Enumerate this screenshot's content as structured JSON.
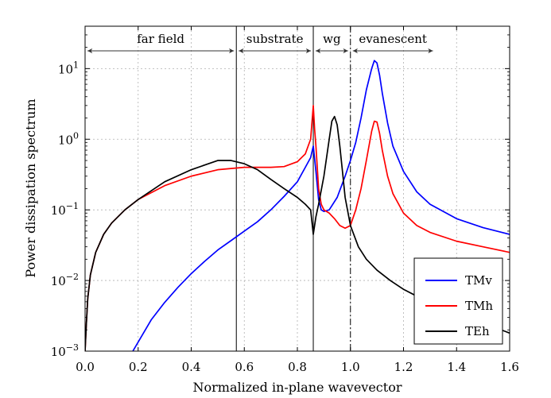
{
  "chart_data": {
    "type": "line",
    "title": "",
    "xlabel": "Normalized in-plane wavevector",
    "ylabel": "Power dissipation spectrum",
    "xlim": [
      0.0,
      1.6
    ],
    "ylim_log10": [
      -3,
      1.6
    ],
    "y_scale": "log",
    "grid": true,
    "legend_position": "bottom-right",
    "x_ticks": [
      0.0,
      0.2,
      0.4,
      0.6,
      0.8,
      1.0,
      1.2,
      1.4,
      1.6
    ],
    "x_tick_labels": [
      "0.0",
      "0.2",
      "0.4",
      "0.6",
      "0.8",
      "1.0",
      "1.2",
      "1.4",
      "1.6"
    ],
    "y_ticks_exp": [
      -3,
      -2,
      -1,
      0,
      1
    ],
    "y_tick_labels": [
      {
        "base": "10",
        "exp": "−3"
      },
      {
        "base": "10",
        "exp": "−2"
      },
      {
        "base": "10",
        "exp": "−1"
      },
      {
        "base": "10",
        "exp": "0"
      },
      {
        "base": "10",
        "exp": "1"
      }
    ],
    "regions": [
      {
        "label": "far field",
        "x_start": 0.0,
        "x_end": 0.57
      },
      {
        "label": "substrate",
        "x_start": 0.57,
        "x_end": 0.86
      },
      {
        "label": "wg",
        "x_start": 0.86,
        "x_end": 1.0
      },
      {
        "label": "evanescent",
        "x_start": 1.0,
        "x_end": 1.32
      }
    ],
    "boundaries": [
      {
        "x": 0.57,
        "style": "solid"
      },
      {
        "x": 0.86,
        "style": "solid"
      },
      {
        "x": 1.0,
        "style": "dashdot"
      }
    ],
    "series": [
      {
        "name": "TMv",
        "color": "#0000ff",
        "x": [
          0.18,
          0.25,
          0.3,
          0.35,
          0.4,
          0.45,
          0.5,
          0.55,
          0.6,
          0.65,
          0.7,
          0.75,
          0.8,
          0.83,
          0.85,
          0.86,
          0.87,
          0.88,
          0.89,
          0.9,
          0.92,
          0.95,
          0.98,
          1.0,
          1.02,
          1.04,
          1.06,
          1.08,
          1.09,
          1.1,
          1.11,
          1.12,
          1.14,
          1.16,
          1.2,
          1.25,
          1.3,
          1.4,
          1.5,
          1.6
        ],
        "y": [
          0.001,
          0.0028,
          0.0049,
          0.008,
          0.0125,
          0.0186,
          0.027,
          0.0367,
          0.05,
          0.068,
          0.1,
          0.155,
          0.25,
          0.4,
          0.55,
          0.8,
          0.35,
          0.14,
          0.1,
          0.095,
          0.1,
          0.15,
          0.3,
          0.5,
          0.9,
          2.0,
          5.0,
          10.0,
          13.0,
          12.0,
          8.0,
          4.5,
          1.7,
          0.8,
          0.35,
          0.18,
          0.12,
          0.075,
          0.056,
          0.045
        ]
      },
      {
        "name": "TMh",
        "color": "#ff0000",
        "x": [
          0.0,
          0.005,
          0.01,
          0.02,
          0.04,
          0.07,
          0.1,
          0.15,
          0.2,
          0.3,
          0.4,
          0.5,
          0.6,
          0.7,
          0.75,
          0.8,
          0.83,
          0.85,
          0.86,
          0.865,
          0.87,
          0.875,
          0.88,
          0.89,
          0.9,
          0.92,
          0.94,
          0.96,
          0.98,
          1.0,
          1.02,
          1.04,
          1.06,
          1.08,
          1.09,
          1.1,
          1.11,
          1.12,
          1.14,
          1.16,
          1.2,
          1.25,
          1.3,
          1.4,
          1.5,
          1.6
        ],
        "y": [
          0.001,
          0.0025,
          0.0055,
          0.012,
          0.025,
          0.045,
          0.065,
          0.1,
          0.14,
          0.22,
          0.3,
          0.37,
          0.4,
          0.4,
          0.41,
          0.48,
          0.62,
          1.0,
          3.0,
          1.4,
          0.8,
          0.4,
          0.2,
          0.12,
          0.1,
          0.09,
          0.075,
          0.06,
          0.055,
          0.06,
          0.1,
          0.2,
          0.5,
          1.3,
          1.8,
          1.75,
          1.2,
          0.7,
          0.3,
          0.17,
          0.09,
          0.06,
          0.048,
          0.036,
          0.03,
          0.025
        ]
      },
      {
        "name": "TEh",
        "color": "#000000",
        "x": [
          0.0,
          0.005,
          0.01,
          0.02,
          0.04,
          0.07,
          0.1,
          0.15,
          0.2,
          0.3,
          0.4,
          0.45,
          0.5,
          0.55,
          0.6,
          0.65,
          0.7,
          0.75,
          0.8,
          0.83,
          0.85,
          0.86,
          0.865,
          0.87,
          0.88,
          0.9,
          0.92,
          0.93,
          0.94,
          0.95,
          0.96,
          0.97,
          0.98,
          1.0,
          1.03,
          1.06,
          1.1,
          1.15,
          1.2,
          1.25,
          1.3,
          1.4,
          1.5,
          1.6
        ],
        "y": [
          0.001,
          0.0025,
          0.0055,
          0.012,
          0.025,
          0.045,
          0.065,
          0.1,
          0.14,
          0.25,
          0.37,
          0.43,
          0.5,
          0.5,
          0.45,
          0.37,
          0.27,
          0.2,
          0.15,
          0.12,
          0.1,
          0.045,
          0.06,
          0.08,
          0.12,
          0.3,
          1.0,
          1.8,
          2.1,
          1.6,
          0.8,
          0.35,
          0.15,
          0.06,
          0.03,
          0.02,
          0.014,
          0.01,
          0.0075,
          0.006,
          0.005,
          0.0037,
          0.0025,
          0.0018
        ]
      }
    ]
  }
}
